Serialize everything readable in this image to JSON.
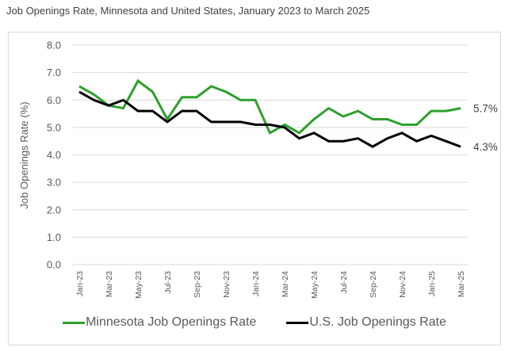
{
  "chart_data": {
    "type": "line",
    "title": "Job Openings Rate, Minnesota and United States, January 2023 to March 2025",
    "xlabel": "",
    "ylabel": "Job Openings Rate (%)",
    "ylim": [
      0,
      8
    ],
    "yticks": [
      "0.0",
      "1.0",
      "2.0",
      "3.0",
      "4.0",
      "5.0",
      "6.0",
      "7.0",
      "8.0"
    ],
    "grid": true,
    "legend_position": "bottom",
    "x": [
      "Jan-23",
      "Feb-23",
      "Mar-23",
      "Apr-23",
      "May-23",
      "Jun-23",
      "Jul-23",
      "Aug-23",
      "Sep-23",
      "Oct-23",
      "Nov-23",
      "Dec-23",
      "Jan-24",
      "Feb-24",
      "Mar-24",
      "Apr-24",
      "May-24",
      "Jun-24",
      "Jul-24",
      "Aug-24",
      "Sep-24",
      "Oct-24",
      "Nov-24",
      "Dec-24",
      "Jan-25",
      "Feb-25",
      "Mar-25"
    ],
    "xtick_labels": [
      "Jan-23",
      "Mar-23",
      "May-23",
      "Jul-23",
      "Sep-23",
      "Nov-23",
      "Jan-24",
      "Mar-24",
      "May-24",
      "Jul-24",
      "Sep-24",
      "Nov-24",
      "Jan-25",
      "Mar-25"
    ],
    "series": [
      {
        "name": "Minnesota Job Openings Rate",
        "color": "#2ca02c",
        "values": [
          6.5,
          6.2,
          5.8,
          5.7,
          6.7,
          6.3,
          5.3,
          6.1,
          6.1,
          6.5,
          6.3,
          6.0,
          6.0,
          4.8,
          5.1,
          4.8,
          5.3,
          5.7,
          5.4,
          5.6,
          5.3,
          5.3,
          5.1,
          5.1,
          5.6,
          5.6,
          5.7
        ],
        "end_label": "5.7%"
      },
      {
        "name": "U.S. Job Openings Rate",
        "color": "#000000",
        "values": [
          6.3,
          6.0,
          5.8,
          6.0,
          5.6,
          5.6,
          5.2,
          5.6,
          5.6,
          5.2,
          5.2,
          5.2,
          5.1,
          5.1,
          5.0,
          4.6,
          4.8,
          4.5,
          4.5,
          4.6,
          4.3,
          4.6,
          4.8,
          4.5,
          4.7,
          4.5,
          4.3
        ],
        "end_label": "4.3%"
      }
    ]
  }
}
